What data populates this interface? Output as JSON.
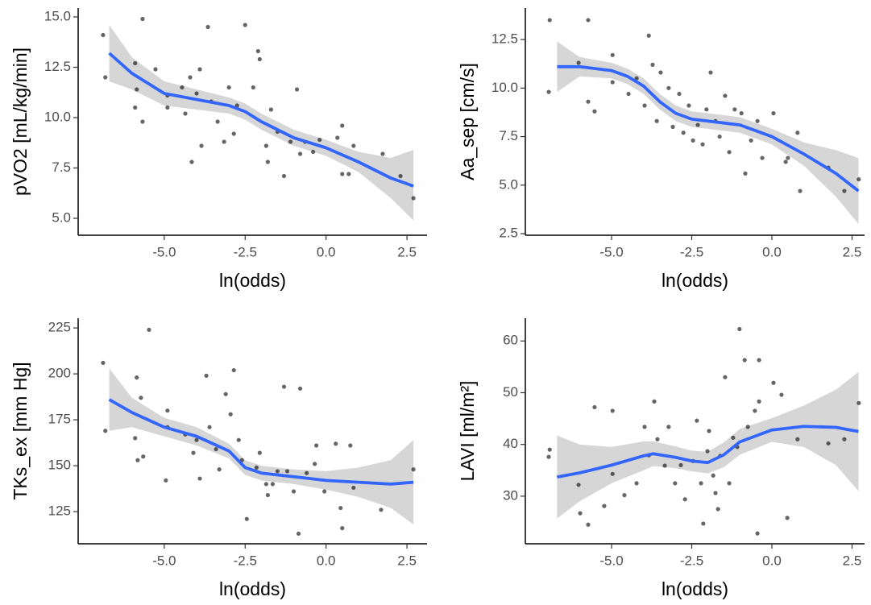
{
  "chart_data": [
    {
      "type": "scatter",
      "xlabel": "ln(odds)",
      "ylabel": "pVO2 [mL/kg/min]",
      "xlim": [
        -7.66,
        3.12
      ],
      "ylim": [
        4.16,
        15.44
      ],
      "xticks": [
        {
          "value": -5,
          "label": "-5.0"
        },
        {
          "value": -2.5,
          "label": "-2.5"
        },
        {
          "value": 0,
          "label": "0.0"
        },
        {
          "value": 2.5,
          "label": "2.5"
        }
      ],
      "yticks": [
        {
          "value": 5,
          "label": "5.0"
        },
        {
          "value": 7.5,
          "label": "7.5"
        },
        {
          "value": 10,
          "label": "10.0"
        },
        {
          "value": 12.5,
          "label": "12.5"
        },
        {
          "value": 15,
          "label": "15.0"
        }
      ],
      "point_color": "#000000",
      "fit_color": "#3366ff",
      "band_color": "#999999",
      "x": [
        -6.89,
        -6.82,
        -5.67,
        -5.9,
        -5.85,
        -5.9,
        -5.67,
        -5.27,
        -4.9,
        -4.9,
        -4.45,
        -4.2,
        -4.0,
        -4.15,
        -3.85,
        -4.35,
        -3.9,
        -3.65,
        -3.55,
        -3.35,
        -3.15,
        -3.0,
        -2.85,
        -2.75,
        -2.5,
        -2.25,
        -2.1,
        -2.05,
        -1.85,
        -1.8,
        -1.7,
        -1.5,
        -1.3,
        -1.1,
        -0.9,
        -0.8,
        -0.65,
        -0.4,
        -0.2,
        0.35,
        0.5,
        0.5,
        0.7,
        0.85,
        1.75,
        2.3,
        2.7
      ],
      "y": [
        14.1,
        12.0,
        14.9,
        12.7,
        11.4,
        10.5,
        9.8,
        12.4,
        11.1,
        10.5,
        11.5,
        12.0,
        11.2,
        7.8,
        8.6,
        10.2,
        12.4,
        14.5,
        10.8,
        9.8,
        8.8,
        11.5,
        9.2,
        10.6,
        14.6,
        11.5,
        13.3,
        12.9,
        8.6,
        7.8,
        10.4,
        9.3,
        7.1,
        8.8,
        11.4,
        8.2,
        8.8,
        8.3,
        8.9,
        9.0,
        9.6,
        7.2,
        7.2,
        8.6,
        8.2,
        7.1,
        6.0
      ],
      "fit_x": [
        -6.7,
        -6,
        -5,
        -4,
        -3,
        -2.5,
        -2,
        -1,
        0,
        1,
        2,
        2.7
      ],
      "fit_y": [
        13.2,
        12.2,
        11.2,
        10.9,
        10.6,
        10.3,
        9.8,
        9.0,
        8.5,
        7.8,
        7.0,
        6.6
      ],
      "fit_lower": [
        11.8,
        11.4,
        10.6,
        10.4,
        10.2,
        9.9,
        9.4,
        8.6,
        8.1,
        7.3,
        6.0,
        4.9
      ],
      "fit_upper": [
        14.6,
        13.0,
        11.8,
        11.4,
        11.0,
        10.7,
        10.2,
        9.4,
        8.9,
        8.3,
        8.0,
        8.4
      ]
    },
    {
      "type": "scatter",
      "xlabel": "ln(odds)",
      "ylabel": "Aa_sep [cm/s]",
      "xlim": [
        -7.69,
        2.89
      ],
      "ylim": [
        2.42,
        14.12
      ],
      "xticks": [
        {
          "value": -5,
          "label": "-5.0"
        },
        {
          "value": -2.5,
          "label": "-2.5"
        },
        {
          "value": 0,
          "label": "0.0"
        },
        {
          "value": 2.5,
          "label": "2.5"
        }
      ],
      "yticks": [
        2.5,
        {
          "value": 5,
          "label": "5.0"
        },
        7.5,
        {
          "value": 10,
          "label": "10.0"
        },
        12.5
      ],
      "point_color": "#000000",
      "fit_color": "#3366ff",
      "band_color": "#999999",
      "x": [
        -6.93,
        -6.96,
        -5.73,
        -6.03,
        -5.73,
        -5.53,
        -4.97,
        -4.97,
        -4.47,
        -4.22,
        -3.97,
        -3.84,
        -3.72,
        -3.59,
        -3.47,
        -3.22,
        -3.09,
        -2.89,
        -2.76,
        -2.59,
        -2.46,
        -2.31,
        -2.16,
        -2.04,
        -1.91,
        -1.76,
        -1.63,
        -1.46,
        -1.33,
        -1.16,
        -0.95,
        -0.83,
        -0.65,
        -0.45,
        -0.3,
        0.05,
        0.43,
        0.5,
        0.8,
        0.88,
        1.76,
        2.26,
        2.71
      ],
      "y": [
        13.5,
        9.8,
        13.5,
        11.3,
        9.3,
        8.8,
        11.7,
        10.3,
        9.7,
        10.5,
        9.1,
        12.7,
        11.2,
        8.3,
        10.8,
        10.0,
        8.0,
        9.7,
        7.7,
        9.1,
        7.3,
        8.1,
        7.1,
        8.9,
        10.8,
        8.3,
        7.5,
        9.6,
        6.7,
        8.9,
        8.7,
        5.6,
        7.3,
        8.3,
        6.4,
        8.7,
        6.2,
        6.4,
        7.7,
        4.7,
        5.9,
        4.7,
        5.3
      ],
      "fit_x": [
        -6.7,
        -6,
        -5,
        -4.5,
        -4,
        -3.5,
        -3,
        -2.5,
        -2,
        -1,
        0,
        1,
        2,
        2.7
      ],
      "fit_y": [
        11.1,
        11.1,
        10.9,
        10.6,
        10.1,
        9.3,
        8.7,
        8.4,
        8.3,
        8.1,
        7.5,
        6.6,
        5.6,
        4.7
      ],
      "fit_lower": [
        9.8,
        10.6,
        10.5,
        10.2,
        9.7,
        8.9,
        8.3,
        8.0,
        7.9,
        7.7,
        7.1,
        6.0,
        4.4,
        3.0
      ],
      "fit_upper": [
        12.4,
        11.6,
        11.3,
        11.0,
        10.5,
        9.7,
        9.1,
        8.8,
        8.7,
        8.5,
        7.9,
        7.2,
        6.8,
        6.4
      ]
    },
    {
      "type": "scatter",
      "xlabel": "ln(odds)",
      "ylabel": "TKs_ex [mm Hg]",
      "xlim": [
        -7.66,
        3.12
      ],
      "ylim": [
        107.5,
        230.3
      ],
      "xticks": [
        {
          "value": -5,
          "label": "-5.0"
        },
        {
          "value": -2.5,
          "label": "-2.5"
        },
        {
          "value": 0,
          "label": "0.0"
        },
        {
          "value": 2.5,
          "label": "2.5"
        }
      ],
      "yticks": [
        125,
        150,
        175,
        200,
        225
      ],
      "point_color": "#000000",
      "fit_color": "#3366ff",
      "band_color": "#999999",
      "x": [
        -6.89,
        -6.82,
        -5.47,
        -5.85,
        -5.72,
        -5.9,
        -5.82,
        -5.65,
        -4.9,
        -4.9,
        -4.95,
        -4.35,
        -4.0,
        -4.1,
        -3.9,
        -3.7,
        -3.6,
        -3.4,
        -3.3,
        -3.1,
        -2.95,
        -2.85,
        -2.7,
        -2.6,
        -2.45,
        -2.15,
        -2.05,
        -1.85,
        -1.8,
        -1.65,
        -1.5,
        -1.3,
        -1.2,
        -1.0,
        -0.8,
        -0.85,
        -0.6,
        -0.35,
        -0.3,
        -0.05,
        0.3,
        0.45,
        0.5,
        0.75,
        0.85,
        1.7,
        2.7
      ],
      "y": [
        206,
        169,
        224,
        198,
        187,
        165,
        153,
        155,
        180,
        171,
        142,
        167,
        164,
        157,
        143,
        199,
        171,
        159,
        148,
        189,
        178,
        202,
        164,
        153,
        121,
        149,
        157,
        140,
        134,
        140,
        147,
        193,
        147,
        136,
        192,
        113,
        146,
        151,
        161,
        136,
        162,
        127,
        116,
        161,
        138,
        126,
        148
      ],
      "fit_x": [
        -6.7,
        -6,
        -5,
        -4,
        -3,
        -2.5,
        -2,
        -1,
        0,
        1,
        2,
        2.7
      ],
      "fit_y": [
        186,
        179,
        171,
        166,
        158,
        149,
        146,
        144,
        142,
        141,
        140,
        141
      ],
      "fit_lower": [
        169,
        171,
        166,
        161,
        154,
        145,
        142,
        140,
        137,
        133,
        127,
        118
      ],
      "fit_upper": [
        203,
        187,
        176,
        171,
        162,
        153,
        150,
        148,
        147,
        149,
        153,
        164
      ]
    },
    {
      "type": "scatter",
      "xlabel": "ln(odds)",
      "ylabel": "LAVI [ml/m²]",
      "xlim": [
        -7.69,
        2.89
      ],
      "ylim": [
        20.8,
        64.4
      ],
      "xticks": [
        {
          "value": -5,
          "label": "-5.0"
        },
        {
          "value": -2.5,
          "label": "-2.5"
        },
        {
          "value": 0,
          "label": "0.0"
        },
        {
          "value": 2.5,
          "label": "2.5"
        }
      ],
      "yticks": [
        30,
        40,
        50,
        60
      ],
      "point_color": "#000000",
      "fit_color": "#3366ff",
      "band_color": "#999999",
      "x": [
        -6.93,
        -6.96,
        -6.03,
        -5.98,
        -5.73,
        -5.53,
        -5.23,
        -4.97,
        -4.97,
        -4.6,
        -4.22,
        -3.97,
        -3.84,
        -3.67,
        -3.57,
        -3.34,
        -3.22,
        -3.02,
        -2.84,
        -2.71,
        -2.46,
        -2.34,
        -2.21,
        -2.14,
        -2.01,
        -1.96,
        -1.83,
        -1.76,
        -1.68,
        -1.61,
        -1.46,
        -1.33,
        -1.21,
        -1.08,
        -1.01,
        -0.85,
        -0.75,
        -0.53,
        -0.4,
        -0.4,
        -0.45,
        0.05,
        0.3,
        0.48,
        0.8,
        1.76,
        2.26,
        2.71
      ],
      "y": [
        39,
        37.6,
        32.2,
        26.7,
        24.5,
        47.2,
        28.1,
        34.3,
        46.5,
        30.2,
        32.5,
        43.4,
        37.9,
        48.3,
        41.0,
        35.9,
        43.4,
        32.5,
        36.0,
        29.4,
        36.8,
        44.6,
        32.5,
        24.7,
        38.7,
        42.6,
        34.0,
        30.6,
        27.5,
        37.8,
        53.0,
        32.5,
        41.3,
        39.5,
        62.3,
        56.3,
        43.4,
        46.5,
        56.3,
        48.3,
        22.8,
        51.9,
        49.6,
        25.8,
        41.0,
        40.2,
        41.0,
        48.0
      ],
      "fit_x": [
        -6.7,
        -6,
        -5,
        -4,
        -3.7,
        -3,
        -2.5,
        -2,
        -1.5,
        -1,
        0,
        1,
        2,
        2.7
      ],
      "fit_y": [
        33.7,
        34.5,
        36.0,
        37.8,
        38.2,
        37.5,
        36.8,
        36.5,
        38.0,
        40.5,
        42.8,
        43.5,
        43.3,
        42.5
      ],
      "fit_lower": [
        25.7,
        29.0,
        32.5,
        35.0,
        35.8,
        35.4,
        34.8,
        34.4,
        35.6,
        38.0,
        40.5,
        39.5,
        36.0,
        31.0
      ],
      "fit_upper": [
        41.7,
        40.0,
        39.5,
        40.6,
        40.6,
        39.6,
        38.8,
        38.6,
        40.4,
        43.0,
        45.1,
        47.5,
        50.6,
        54.0
      ]
    }
  ]
}
